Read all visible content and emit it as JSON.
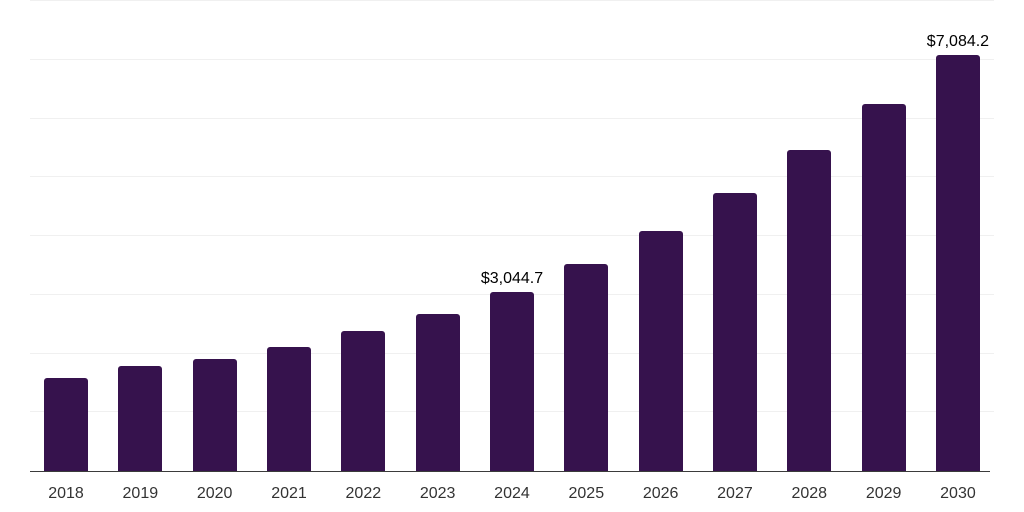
{
  "chart_data": {
    "type": "bar",
    "categories": [
      "2018",
      "2019",
      "2020",
      "2021",
      "2022",
      "2023",
      "2024",
      "2025",
      "2026",
      "2027",
      "2028",
      "2029",
      "2030"
    ],
    "values": [
      1580,
      1795,
      1910,
      2105,
      2375,
      2665,
      3044.7,
      3520,
      4090,
      4740,
      5470,
      6255,
      7084.2
    ],
    "data_labels": {
      "2024": "$3,044.7",
      "2030": "$7,084.2"
    },
    "ylim": [
      0,
      8000
    ],
    "gridline_interval": 1000,
    "grid": true,
    "legend": "none",
    "colors": {
      "bar": "#36124D",
      "gridline": "#f0f0f0",
      "axis_line": "#3b3b3b",
      "tick_label": "#333333",
      "data_label": "#000000"
    }
  }
}
